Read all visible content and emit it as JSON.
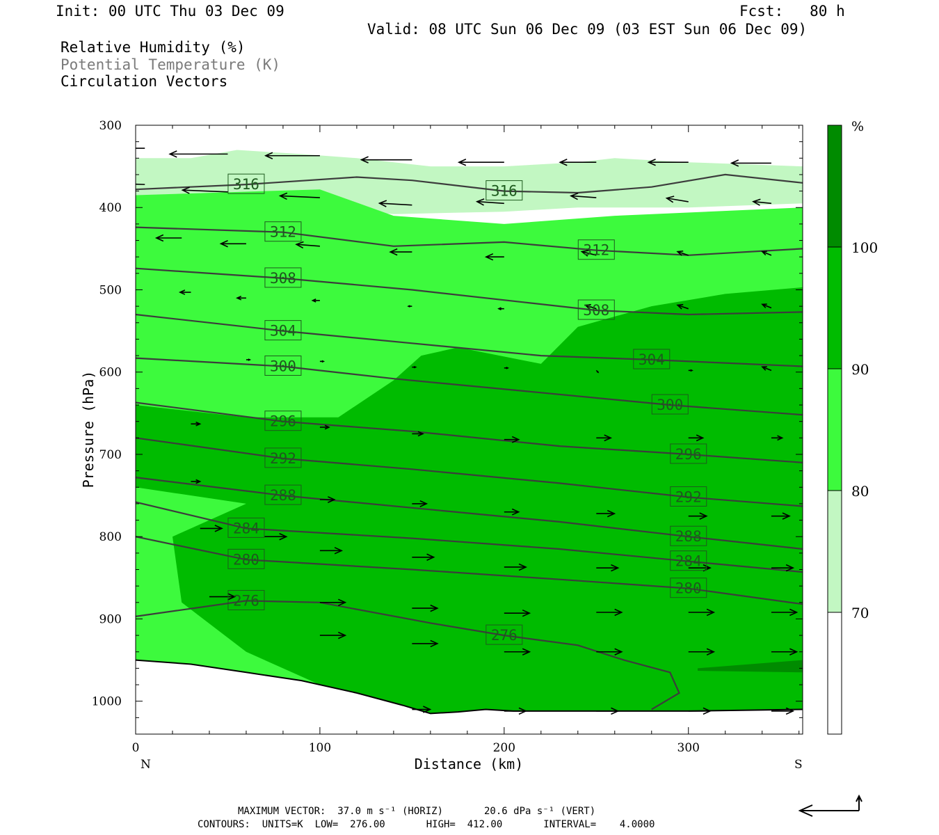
{
  "header": {
    "init": "Init: 00 UTC Thu 03 Dec 09",
    "fcst": "Fcst:   80 h",
    "valid": "Valid: 08 UTC Sun 06 Dec 09 (03 EST Sun 06 Dec 09)",
    "field1": "Relative Humidity (%)",
    "field2": "Potential Temperature (K)",
    "field3": "Circulation Vectors"
  },
  "footer": {
    "vector_line": "MAXIMUM VECTOR:  37.0 m s⁻¹ (HORIZ)       20.6 dPa s⁻¹ (VERT)",
    "contour_line": "CONTOURS:  UNITS=K  LOW=  276.00       HIGH=  412.00       INTERVAL=    4.0000"
  },
  "colors": {
    "rh_70_80": "#c2f7c2",
    "rh_80_90": "#3dfa3d",
    "rh_90_100": "#00bb00",
    "rh_100": "#008b00",
    "contour": "#3c3c3c"
  },
  "chart_data": {
    "type": "cross-section",
    "xlabel": "Distance (km)",
    "ylabel": "Pressure (hPa)",
    "xlim": [
      0,
      362
    ],
    "ylim": [
      1040,
      300
    ],
    "x_ticks": [
      "0",
      "100",
      "200",
      "300"
    ],
    "y_ticks": [
      "300",
      "400",
      "500",
      "600",
      "700",
      "800",
      "900",
      "1000"
    ],
    "left_end_label": "N",
    "right_end_label": "S",
    "colorbar": {
      "unit": "%",
      "levels": [
        "70",
        "80",
        "90",
        "100"
      ]
    },
    "theta_contours": [
      {
        "label": "316",
        "points": [
          [
            0,
            378
          ],
          [
            60,
            372
          ],
          [
            120,
            363
          ],
          [
            150,
            367
          ],
          [
            200,
            380
          ],
          [
            240,
            382
          ],
          [
            280,
            375
          ],
          [
            320,
            360
          ],
          [
            362,
            370
          ]
        ]
      },
      {
        "label": "312",
        "points": [
          [
            0,
            424
          ],
          [
            80,
            430
          ],
          [
            140,
            447
          ],
          [
            200,
            442
          ],
          [
            250,
            452
          ],
          [
            300,
            458
          ],
          [
            362,
            450
          ]
        ]
      },
      {
        "label": "308",
        "points": [
          [
            0,
            474
          ],
          [
            80,
            486
          ],
          [
            150,
            500
          ],
          [
            210,
            515
          ],
          [
            250,
            525
          ],
          [
            300,
            530
          ],
          [
            362,
            527
          ]
        ]
      },
      {
        "label": "304",
        "points": [
          [
            0,
            530
          ],
          [
            80,
            550
          ],
          [
            150,
            565
          ],
          [
            220,
            580
          ],
          [
            280,
            585
          ],
          [
            362,
            593
          ]
        ]
      },
      {
        "label": "300",
        "points": [
          [
            0,
            583
          ],
          [
            80,
            593
          ],
          [
            140,
            608
          ],
          [
            220,
            625
          ],
          [
            290,
            640
          ],
          [
            362,
            652
          ]
        ]
      },
      {
        "label": "296",
        "points": [
          [
            0,
            637
          ],
          [
            80,
            660
          ],
          [
            150,
            672
          ],
          [
            230,
            690
          ],
          [
            300,
            700
          ],
          [
            362,
            710
          ]
        ]
      },
      {
        "label": "292",
        "points": [
          [
            0,
            680
          ],
          [
            80,
            705
          ],
          [
            150,
            718
          ],
          [
            230,
            735
          ],
          [
            300,
            752
          ],
          [
            362,
            763
          ]
        ]
      },
      {
        "label": "288",
        "points": [
          [
            0,
            728
          ],
          [
            80,
            750
          ],
          [
            150,
            765
          ],
          [
            230,
            782
          ],
          [
            300,
            800
          ],
          [
            362,
            815
          ]
        ]
      },
      {
        "label": "284",
        "points": [
          [
            0,
            758
          ],
          [
            60,
            790
          ],
          [
            150,
            802
          ],
          [
            230,
            815
          ],
          [
            300,
            830
          ],
          [
            362,
            843
          ]
        ]
      },
      {
        "label": "280",
        "points": [
          [
            0,
            800
          ],
          [
            60,
            828
          ],
          [
            150,
            840
          ],
          [
            230,
            852
          ],
          [
            300,
            863
          ],
          [
            362,
            882
          ]
        ]
      },
      {
        "label": "276",
        "points": [
          [
            0,
            897
          ],
          [
            60,
            878
          ],
          [
            100,
            880
          ],
          [
            160,
            905
          ],
          [
            200,
            920
          ],
          [
            240,
            932
          ],
          [
            265,
            950
          ],
          [
            290,
            965
          ],
          [
            295,
            990
          ],
          [
            280,
            1010
          ]
        ]
      }
    ],
    "rh_zones": [
      {
        "level": "70-80",
        "points": [
          [
            0,
            340
          ],
          [
            30,
            340
          ],
          [
            55,
            330
          ],
          [
            90,
            335
          ],
          [
            120,
            340
          ],
          [
            160,
            350
          ],
          [
            200,
            350
          ],
          [
            240,
            345
          ],
          [
            260,
            340
          ],
          [
            300,
            345
          ],
          [
            362,
            350
          ],
          [
            362,
            395
          ],
          [
            300,
            400
          ],
          [
            240,
            400
          ],
          [
            200,
            405
          ],
          [
            140,
            408
          ],
          [
            100,
            400
          ],
          [
            60,
            400
          ],
          [
            0,
            400
          ]
        ]
      },
      {
        "label_hint": "",
        "level": "80-90",
        "points": [
          [
            0,
            385
          ],
          [
            100,
            378
          ],
          [
            140,
            410
          ],
          [
            200,
            420
          ],
          [
            260,
            410
          ],
          [
            362,
            400
          ],
          [
            362,
            1010
          ],
          [
            0,
            1010
          ]
        ]
      },
      {
        "level": "90-100",
        "points": [
          [
            0,
            640
          ],
          [
            60,
            655
          ],
          [
            110,
            655
          ],
          [
            140,
            610
          ],
          [
            155,
            580
          ],
          [
            175,
            570
          ],
          [
            220,
            590
          ],
          [
            240,
            545
          ],
          [
            280,
            520
          ],
          [
            320,
            505
          ],
          [
            362,
            497
          ],
          [
            362,
            1010
          ],
          [
            160,
            1015
          ],
          [
            110,
            990
          ],
          [
            60,
            940
          ],
          [
            25,
            880
          ],
          [
            20,
            800
          ],
          [
            60,
            760
          ],
          [
            0,
            740
          ]
        ]
      },
      {
        "level": "100",
        "points": [
          [
            305,
            960
          ],
          [
            362,
            950
          ],
          [
            362,
            965
          ],
          [
            305,
            963
          ]
        ]
      }
    ],
    "vectors": [
      {
        "x": 5,
        "p": 328,
        "u": -30,
        "w": 0
      },
      {
        "x": 50,
        "p": 335,
        "u": -32,
        "w": 0
      },
      {
        "x": 100,
        "p": 337,
        "u": -30,
        "w": 0
      },
      {
        "x": 150,
        "p": 342,
        "u": -28,
        "w": 0
      },
      {
        "x": 200,
        "p": 345,
        "u": -25,
        "w": 0
      },
      {
        "x": 250,
        "p": 345,
        "u": -20,
        "w": 0
      },
      {
        "x": 300,
        "p": 345,
        "u": -22,
        "w": 0
      },
      {
        "x": 345,
        "p": 346,
        "u": -22,
        "w": 0
      },
      {
        "x": 5,
        "p": 372,
        "u": -30,
        "w": 1
      },
      {
        "x": 50,
        "p": 381,
        "u": -25,
        "w": 1
      },
      {
        "x": 100,
        "p": 388,
        "u": -22,
        "w": 1
      },
      {
        "x": 150,
        "p": 397,
        "u": -18,
        "w": 1
      },
      {
        "x": 200,
        "p": 395,
        "u": -15,
        "w": 1
      },
      {
        "x": 250,
        "p": 388,
        "u": -14,
        "w": 1
      },
      {
        "x": 300,
        "p": 393,
        "u": -12,
        "w": 2
      },
      {
        "x": 345,
        "p": 395,
        "u": -10,
        "w": 1
      },
      {
        "x": 25,
        "p": 437,
        "u": -14,
        "w": 0
      },
      {
        "x": 60,
        "p": 444,
        "u": -14,
        "w": 0
      },
      {
        "x": 100,
        "p": 447,
        "u": -13,
        "w": 1
      },
      {
        "x": 150,
        "p": 454,
        "u": -12,
        "w": 0
      },
      {
        "x": 200,
        "p": 460,
        "u": -10,
        "w": 0
      },
      {
        "x": 250,
        "p": 458,
        "u": -8,
        "w": 2
      },
      {
        "x": 300,
        "p": 458,
        "u": -6,
        "w": 2
      },
      {
        "x": 345,
        "p": 458,
        "u": -5,
        "w": 2
      },
      {
        "x": 30,
        "p": 503,
        "u": -6,
        "w": 0
      },
      {
        "x": 60,
        "p": 510,
        "u": -5,
        "w": 0
      },
      {
        "x": 100,
        "p": 513,
        "u": -4,
        "w": 0
      },
      {
        "x": 150,
        "p": 520,
        "u": -2,
        "w": 0
      },
      {
        "x": 200,
        "p": 523,
        "u": -3,
        "w": 0
      },
      {
        "x": 250,
        "p": 523,
        "u": -6,
        "w": 2
      },
      {
        "x": 300,
        "p": 523,
        "u": -6,
        "w": 2
      },
      {
        "x": 345,
        "p": 522,
        "u": -5,
        "w": 2
      },
      {
        "x": 60,
        "p": 585,
        "u": 2,
        "w": 0
      },
      {
        "x": 100,
        "p": 587,
        "u": 2,
        "w": 0
      },
      {
        "x": 150,
        "p": 594,
        "u": 2,
        "w": 0
      },
      {
        "x": 200,
        "p": 595,
        "u": 2,
        "w": 0
      },
      {
        "x": 250,
        "p": 598,
        "u": 1,
        "w": -1
      },
      {
        "x": 300,
        "p": 598,
        "u": 2,
        "w": 0
      },
      {
        "x": 345,
        "p": 598,
        "u": -5,
        "w": 2
      },
      {
        "x": 30,
        "p": 663,
        "u": 5,
        "w": 0
      },
      {
        "x": 100,
        "p": 667,
        "u": 5,
        "w": 0
      },
      {
        "x": 150,
        "p": 675,
        "u": 6,
        "w": 0
      },
      {
        "x": 200,
        "p": 682,
        "u": 8,
        "w": 0
      },
      {
        "x": 250,
        "p": 680,
        "u": 8,
        "w": 0
      },
      {
        "x": 300,
        "p": 680,
        "u": 8,
        "w": 0
      },
      {
        "x": 345,
        "p": 680,
        "u": 6,
        "w": 0
      },
      {
        "x": 30,
        "p": 733,
        "u": 5,
        "w": 0
      },
      {
        "x": 100,
        "p": 755,
        "u": 8,
        "w": 0
      },
      {
        "x": 150,
        "p": 760,
        "u": 8,
        "w": 0
      },
      {
        "x": 200,
        "p": 770,
        "u": 8,
        "w": 0
      },
      {
        "x": 250,
        "p": 772,
        "u": 10,
        "w": 0
      },
      {
        "x": 300,
        "p": 775,
        "u": 10,
        "w": 0
      },
      {
        "x": 345,
        "p": 775,
        "u": 10,
        "w": 0
      },
      {
        "x": 35,
        "p": 790,
        "u": 12,
        "w": 0
      },
      {
        "x": 70,
        "p": 800,
        "u": 12,
        "w": 0
      },
      {
        "x": 100,
        "p": 817,
        "u": 12,
        "w": 0
      },
      {
        "x": 150,
        "p": 825,
        "u": 12,
        "w": 0
      },
      {
        "x": 200,
        "p": 837,
        "u": 12,
        "w": 0
      },
      {
        "x": 250,
        "p": 838,
        "u": 12,
        "w": 0
      },
      {
        "x": 300,
        "p": 838,
        "u": 12,
        "w": 0
      },
      {
        "x": 345,
        "p": 838,
        "u": 12,
        "w": 0
      },
      {
        "x": 40,
        "p": 873,
        "u": 14,
        "w": 0
      },
      {
        "x": 100,
        "p": 880,
        "u": 14,
        "w": 0
      },
      {
        "x": 150,
        "p": 887,
        "u": 14,
        "w": 0
      },
      {
        "x": 200,
        "p": 893,
        "u": 14,
        "w": 0
      },
      {
        "x": 250,
        "p": 892,
        "u": 14,
        "w": 0
      },
      {
        "x": 300,
        "p": 892,
        "u": 14,
        "w": 0
      },
      {
        "x": 345,
        "p": 892,
        "u": 14,
        "w": 0
      },
      {
        "x": 100,
        "p": 920,
        "u": 14,
        "w": 0
      },
      {
        "x": 150,
        "p": 930,
        "u": 14,
        "w": 0
      },
      {
        "x": 200,
        "p": 940,
        "u": 14,
        "w": 0
      },
      {
        "x": 250,
        "p": 940,
        "u": 14,
        "w": 0
      },
      {
        "x": 300,
        "p": 940,
        "u": 14,
        "w": 0
      },
      {
        "x": 345,
        "p": 940,
        "u": 14,
        "w": 0
      },
      {
        "x": 150,
        "p": 1010,
        "u": 10,
        "w": 0
      },
      {
        "x": 200,
        "p": 1012,
        "u": 12,
        "w": 0
      },
      {
        "x": 250,
        "p": 1012,
        "u": 12,
        "w": 0
      },
      {
        "x": 300,
        "p": 1012,
        "u": 12,
        "w": 0
      },
      {
        "x": 345,
        "p": 1012,
        "u": 12,
        "w": 0
      }
    ],
    "terrain": [
      [
        0,
        950
      ],
      [
        30,
        955
      ],
      [
        60,
        965
      ],
      [
        90,
        975
      ],
      [
        120,
        990
      ],
      [
        145,
        1005
      ],
      [
        160,
        1015
      ],
      [
        175,
        1013
      ],
      [
        190,
        1010
      ],
      [
        205,
        1012
      ],
      [
        300,
        1012
      ],
      [
        362,
        1010
      ]
    ]
  }
}
